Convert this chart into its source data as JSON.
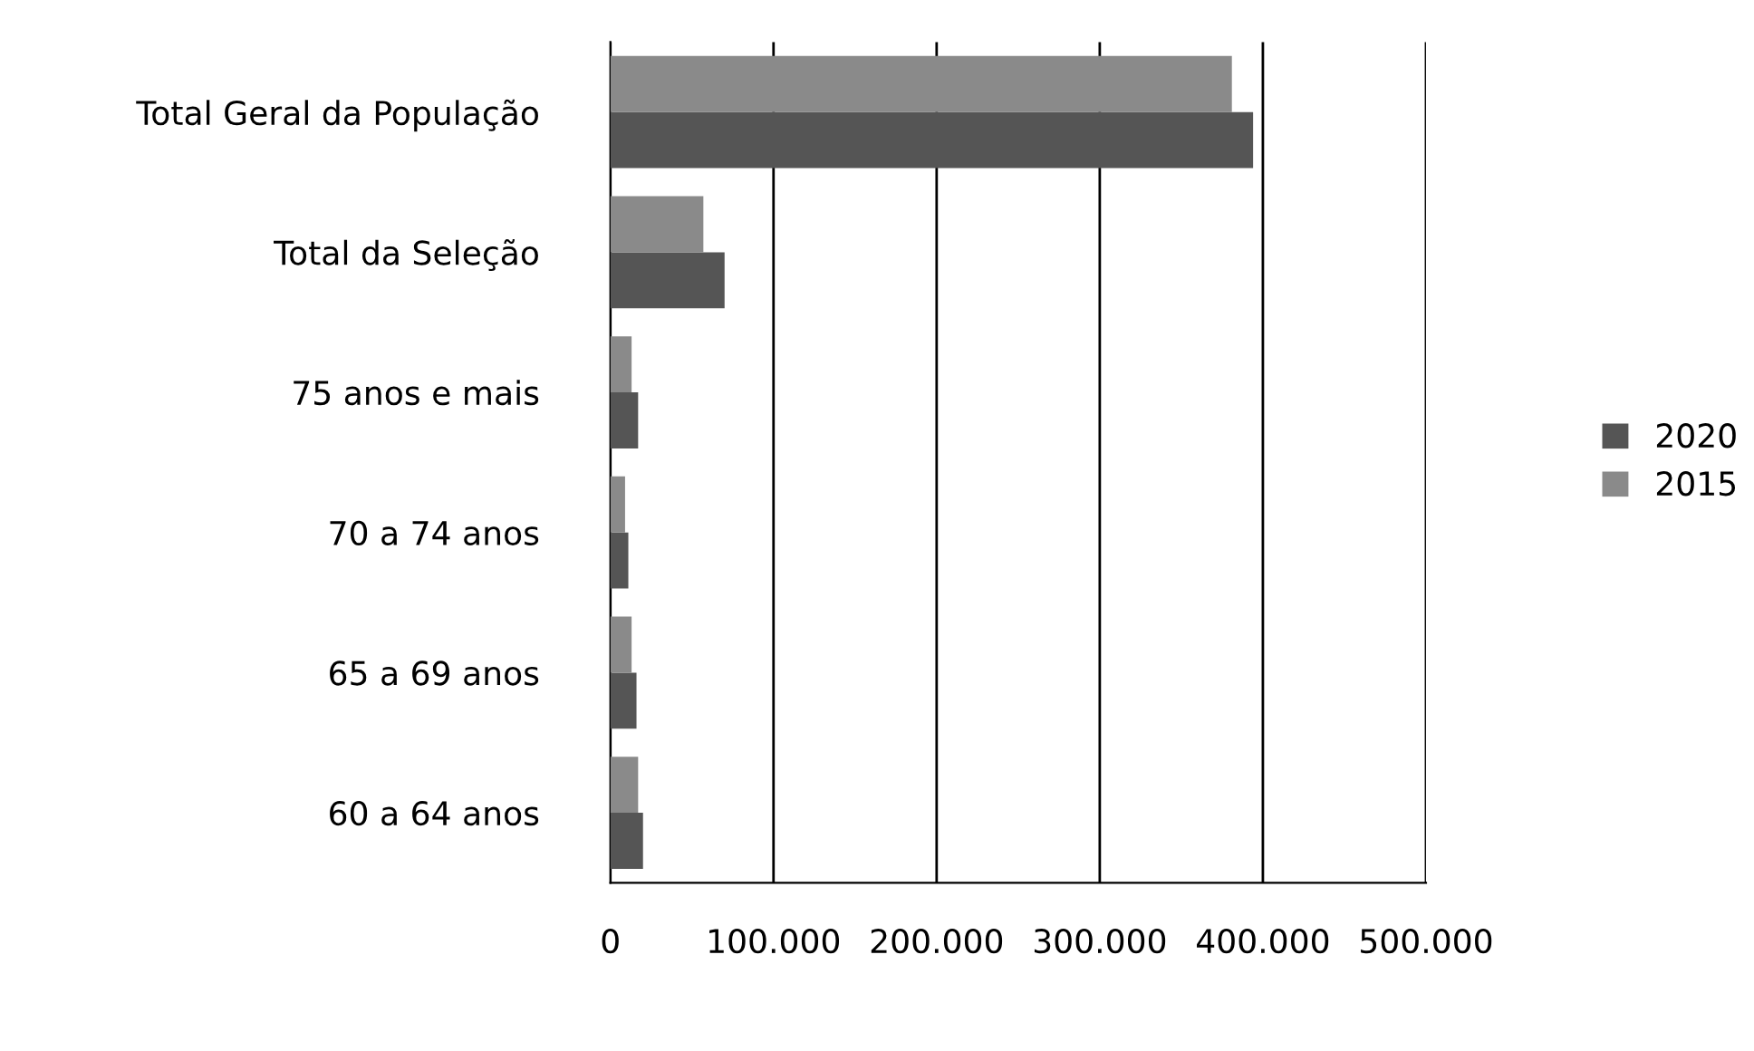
{
  "chart_data": {
    "type": "bar",
    "orientation": "horizontal",
    "categories": [
      "Total Geral da População",
      "Total da Seleção",
      "75 anos e mais",
      "70 a 74 anos",
      "65 a 69 anos",
      "60 a 64 anos"
    ],
    "series": [
      {
        "name": "2020",
        "color": "#555555",
        "values": [
          394000,
          70000,
          17000,
          11000,
          16000,
          20000
        ]
      },
      {
        "name": "2015",
        "color": "#8a8a8a",
        "values": [
          381000,
          57000,
          13000,
          9000,
          13000,
          17000
        ]
      }
    ],
    "xlim": [
      0,
      500000
    ],
    "xticks": [
      0,
      {
        "value": 100000,
        "label": "100.000"
      },
      {
        "value": 200000,
        "label": "200.000"
      },
      {
        "value": 300000,
        "label": "300.000"
      },
      {
        "value": 400000,
        "label": "400.000"
      },
      {
        "value": 500000,
        "label": "500.000"
      }
    ],
    "grid": "x",
    "legend": "right"
  }
}
